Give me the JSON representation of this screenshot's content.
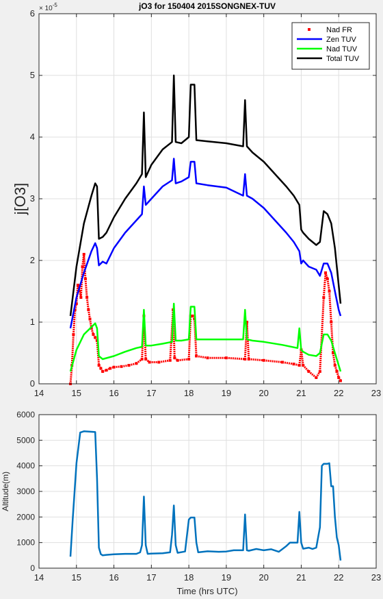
{
  "chart_data": [
    {
      "type": "line",
      "title": "jO3 for 150404 2015SONGNEX-TUV",
      "xlabel": "",
      "ylabel": "j[O3]",
      "y_exponent_label": "× 10",
      "y_exponent_power": "-5",
      "xlim": [
        14,
        23
      ],
      "ylim": [
        0,
        6
      ],
      "grid": true,
      "legend_location": "top-right",
      "x_tick_labels": [
        "14",
        "15",
        "16",
        "17",
        "18",
        "19",
        "20",
        "21",
        "22",
        "23"
      ],
      "y_tick_labels": [
        "0",
        "1",
        "2",
        "3",
        "4",
        "5",
        "6"
      ],
      "series": [
        {
          "name": "Nad FR",
          "style": "markers",
          "color": "#ff0000",
          "x": [
            14.84,
            14.88,
            14.92,
            14.96,
            15.0,
            15.04,
            15.08,
            15.12,
            15.16,
            15.2,
            15.24,
            15.28,
            15.32,
            15.36,
            15.4,
            15.45,
            15.5,
            15.55,
            15.6,
            15.65,
            15.7,
            15.8,
            15.9,
            16.0,
            16.2,
            16.4,
            16.6,
            16.75,
            16.8,
            16.85,
            16.95,
            17.2,
            17.5,
            17.58,
            17.62,
            17.7,
            18.0,
            18.05,
            18.1,
            18.15,
            18.2,
            18.5,
            19.0,
            19.5,
            19.55,
            19.6,
            20.0,
            20.5,
            20.8,
            20.95,
            21.0,
            21.05,
            21.2,
            21.4,
            21.5,
            21.6,
            21.65,
            21.7,
            21.75,
            21.8,
            21.85,
            21.9,
            21.95,
            22.0,
            22.05
          ],
          "y": [
            0.0,
            0.3,
            0.8,
            1.2,
            1.3,
            1.6,
            1.5,
            1.4,
            1.9,
            2.1,
            1.7,
            1.4,
            1.2,
            1.05,
            0.9,
            0.8,
            0.75,
            0.7,
            0.3,
            0.25,
            0.2,
            0.22,
            0.25,
            0.27,
            0.28,
            0.3,
            0.33,
            0.4,
            1.1,
            0.4,
            0.35,
            0.35,
            0.38,
            1.2,
            0.42,
            0.38,
            0.4,
            1.1,
            1.1,
            1.05,
            0.45,
            0.42,
            0.42,
            0.4,
            1.0,
            0.4,
            0.38,
            0.35,
            0.32,
            0.3,
            0.55,
            0.3,
            0.2,
            0.1,
            0.2,
            1.4,
            1.8,
            1.7,
            1.5,
            1.0,
            0.5,
            0.3,
            0.2,
            0.1,
            0.05
          ]
        },
        {
          "name": "Zen TUV",
          "style": "line",
          "color": "#0000ff",
          "x": [
            14.84,
            15.0,
            15.2,
            15.4,
            15.5,
            15.55,
            15.6,
            15.7,
            15.8,
            16.0,
            16.3,
            16.6,
            16.75,
            16.8,
            16.85,
            17.0,
            17.3,
            17.55,
            17.6,
            17.65,
            17.8,
            18.0,
            18.05,
            18.15,
            18.2,
            18.5,
            19.0,
            19.45,
            19.5,
            19.55,
            19.7,
            20.0,
            20.3,
            20.6,
            20.8,
            20.95,
            21.0,
            21.05,
            21.2,
            21.4,
            21.5,
            21.6,
            21.7,
            21.8,
            21.9,
            22.0,
            22.05
          ],
          "y": [
            0.9,
            1.4,
            1.8,
            2.15,
            2.28,
            2.2,
            1.92,
            1.98,
            1.95,
            2.2,
            2.45,
            2.65,
            2.75,
            3.2,
            2.9,
            3.0,
            3.2,
            3.3,
            3.65,
            3.25,
            3.28,
            3.35,
            3.6,
            3.6,
            3.25,
            3.22,
            3.18,
            3.05,
            3.4,
            3.05,
            3.0,
            2.85,
            2.65,
            2.45,
            2.3,
            2.15,
            1.95,
            2.0,
            1.9,
            1.85,
            1.75,
            1.95,
            1.95,
            1.8,
            1.5,
            1.2,
            1.1
          ]
        },
        {
          "name": "Nad TUV",
          "style": "line",
          "color": "#00ff00",
          "x": [
            14.84,
            15.0,
            15.2,
            15.4,
            15.5,
            15.55,
            15.6,
            15.7,
            16.0,
            16.3,
            16.6,
            16.75,
            16.8,
            16.85,
            17.0,
            17.3,
            17.55,
            17.6,
            17.65,
            17.8,
            18.0,
            18.05,
            18.15,
            18.2,
            18.5,
            19.0,
            19.45,
            19.5,
            19.55,
            19.7,
            20.0,
            20.5,
            20.9,
            20.95,
            21.0,
            21.05,
            21.2,
            21.4,
            21.5,
            21.6,
            21.7,
            21.8,
            21.9,
            22.0,
            22.05
          ],
          "y": [
            0.2,
            0.55,
            0.8,
            0.92,
            0.98,
            0.9,
            0.45,
            0.4,
            0.45,
            0.52,
            0.58,
            0.6,
            1.2,
            0.62,
            0.62,
            0.65,
            0.68,
            1.3,
            0.7,
            0.7,
            0.72,
            1.25,
            1.25,
            0.72,
            0.72,
            0.72,
            0.72,
            1.2,
            0.72,
            0.7,
            0.68,
            0.63,
            0.58,
            0.9,
            0.55,
            0.52,
            0.47,
            0.45,
            0.5,
            0.8,
            0.8,
            0.7,
            0.5,
            0.3,
            0.2
          ]
        },
        {
          "name": "Total TUV",
          "style": "line",
          "color": "#000000",
          "x": [
            14.84,
            15.0,
            15.2,
            15.4,
            15.5,
            15.55,
            15.6,
            15.7,
            15.8,
            16.0,
            16.3,
            16.6,
            16.75,
            16.8,
            16.85,
            17.0,
            17.3,
            17.55,
            17.6,
            17.65,
            17.8,
            18.0,
            18.05,
            18.15,
            18.2,
            18.5,
            19.0,
            19.45,
            19.5,
            19.55,
            19.7,
            20.0,
            20.3,
            20.6,
            20.8,
            20.95,
            21.0,
            21.05,
            21.2,
            21.4,
            21.5,
            21.6,
            21.7,
            21.8,
            21.9,
            22.0,
            22.05
          ],
          "y": [
            1.1,
            1.9,
            2.6,
            3.05,
            3.25,
            3.2,
            2.35,
            2.38,
            2.45,
            2.7,
            3.0,
            3.25,
            3.4,
            4.4,
            3.35,
            3.55,
            3.8,
            3.92,
            5.0,
            3.92,
            3.9,
            4.0,
            4.85,
            4.85,
            3.95,
            3.93,
            3.9,
            3.85,
            4.6,
            3.85,
            3.75,
            3.6,
            3.4,
            3.2,
            3.05,
            2.9,
            2.5,
            2.45,
            2.35,
            2.25,
            2.3,
            2.8,
            2.75,
            2.6,
            2.2,
            1.6,
            1.3
          ]
        }
      ]
    },
    {
      "type": "line",
      "title": "",
      "xlabel": "Time (hrs UTC)",
      "ylabel": "Altitude(m)",
      "xlim": [
        14,
        23
      ],
      "ylim": [
        0,
        6000
      ],
      "grid": true,
      "x_tick_labels": [
        "14",
        "15",
        "16",
        "17",
        "18",
        "19",
        "20",
        "21",
        "22",
        "23"
      ],
      "y_tick_labels": [
        "0",
        "1000",
        "2000",
        "3000",
        "4000",
        "5000",
        "6000"
      ],
      "series": [
        {
          "color": "#0072bd",
          "x": [
            14.84,
            14.9,
            15.0,
            15.1,
            15.2,
            15.3,
            15.4,
            15.5,
            15.55,
            15.6,
            15.65,
            15.7,
            15.8,
            16.0,
            16.3,
            16.6,
            16.7,
            16.75,
            16.8,
            16.85,
            16.9,
            17.0,
            17.3,
            17.5,
            17.55,
            17.6,
            17.65,
            17.7,
            17.9,
            18.0,
            18.05,
            18.15,
            18.2,
            18.25,
            18.5,
            18.8,
            19.0,
            19.2,
            19.45,
            19.5,
            19.55,
            19.6,
            19.8,
            20.0,
            20.2,
            20.4,
            20.5,
            20.6,
            20.7,
            20.9,
            20.95,
            21.0,
            21.05,
            21.2,
            21.3,
            21.4,
            21.5,
            21.55,
            21.6,
            21.7,
            21.75,
            21.8,
            21.85,
            21.9,
            21.95,
            22.0,
            22.05
          ],
          "y": [
            450,
            1900,
            4100,
            5300,
            5350,
            5340,
            5330,
            5320,
            3500,
            800,
            550,
            500,
            520,
            540,
            560,
            560,
            620,
            900,
            2800,
            900,
            560,
            570,
            580,
            620,
            1300,
            2450,
            900,
            600,
            650,
            1900,
            1980,
            1980,
            1000,
            620,
            660,
            640,
            650,
            700,
            700,
            2100,
            700,
            680,
            750,
            700,
            740,
            640,
            750,
            860,
            1000,
            1000,
            2200,
            1000,
            760,
            800,
            750,
            800,
            1600,
            4000,
            4080,
            4080,
            4100,
            3200,
            3200,
            2000,
            1200,
            900,
            300
          ]
        }
      ]
    }
  ]
}
